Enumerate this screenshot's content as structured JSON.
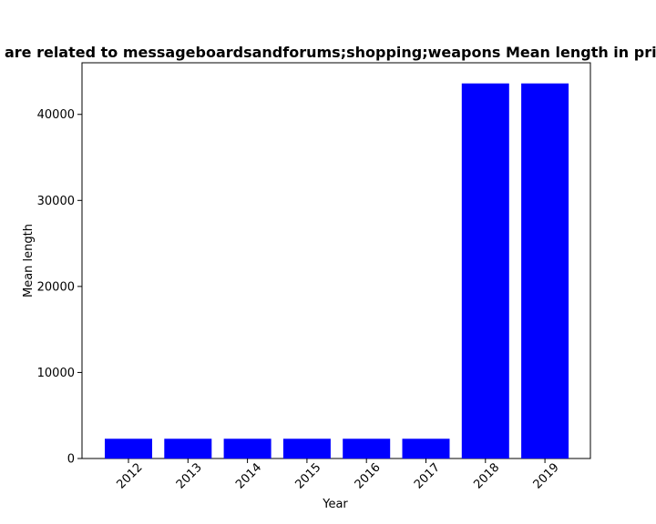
{
  "chart_data": {
    "type": "bar",
    "title": "are related to messageboardsandforums;shopping;weapons Mean length in priv",
    "xlabel": "Year",
    "ylabel": "Mean length",
    "categories": [
      "2012",
      "2013",
      "2014",
      "2015",
      "2016",
      "2017",
      "2018",
      "2019"
    ],
    "values": [
      2300,
      2300,
      2300,
      2300,
      2300,
      2300,
      43600,
      43600
    ],
    "ylim": [
      0,
      46000
    ],
    "yticks": [
      0,
      10000,
      20000,
      30000,
      40000
    ],
    "bar_color": "#0000ff",
    "grid": false,
    "legend": false
  }
}
